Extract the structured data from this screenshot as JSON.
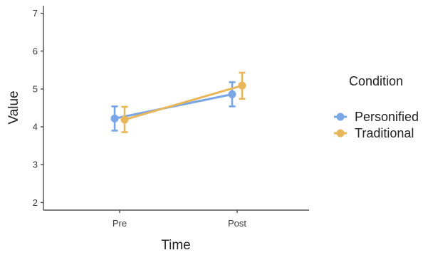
{
  "chart_data": {
    "type": "line",
    "title": "",
    "xlabel": "Time",
    "ylabel": "Value",
    "categories": [
      "Pre",
      "Post"
    ],
    "ylim": [
      1.8,
      7.2
    ],
    "yticks": [
      "2",
      "3",
      "4",
      "5",
      "6",
      "7"
    ],
    "grid": false,
    "legend": {
      "title": "Condition",
      "placement": "right"
    },
    "series": [
      {
        "name": "Personified",
        "color": "#7aa6e6",
        "values": [
          4.22,
          4.86
        ],
        "error_low": [
          3.9,
          4.54
        ],
        "error_high": [
          4.54,
          5.18
        ]
      },
      {
        "name": "Traditional",
        "color": "#e8b75a",
        "values": [
          4.19,
          5.09
        ],
        "error_low": [
          3.86,
          4.74
        ],
        "error_high": [
          4.53,
          5.43
        ]
      }
    ]
  }
}
